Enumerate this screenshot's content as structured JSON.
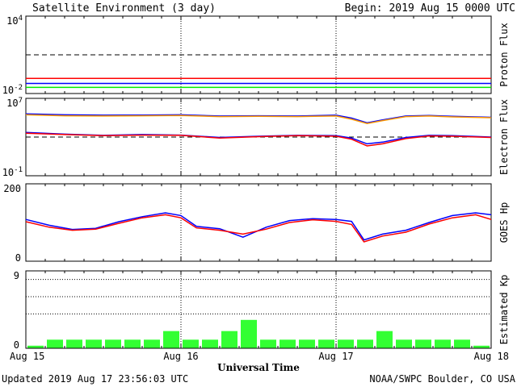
{
  "header": {
    "title": "Satellite Environment (3 day)",
    "begin": "Begin:  2019 Aug 15 0000 UTC"
  },
  "footer": {
    "updated": "Updated 2019 Aug 17 23:56:03 UTC",
    "credit": "NOAA/SWPC Boulder, CO USA"
  },
  "x_axis": {
    "label": "Universal Time",
    "ticks": [
      "Aug 15",
      "Aug 16",
      "Aug 17",
      "Aug 18"
    ]
  },
  "colors": {
    "red": "#ff0000",
    "blue": "#0000ff",
    "green": "#00ee00",
    "orange": "#ff9900",
    "kp_bar": "#33ff33",
    "axis": "#000000"
  },
  "chart_data": [
    {
      "type": "line",
      "title": "Proton Flux",
      "ylabel": "Proton Flux",
      "yscale": "log",
      "ylim": [
        0.01,
        10000
      ],
      "tick_labels": {
        "top_base": "10",
        "top_exp": "4",
        "bottom_base": "10",
        "bottom_exp": "-2"
      },
      "threshold": 10,
      "x": [
        0,
        0.25,
        0.5,
        0.75,
        1,
        1.25,
        1.5,
        1.75,
        2,
        2.25,
        2.5,
        2.75,
        3
      ],
      "series": [
        {
          "color": "red",
          "values": [
            0.15,
            0.15,
            0.15,
            0.15,
            0.15,
            0.15,
            0.15,
            0.15,
            0.15,
            0.15,
            0.15,
            0.15,
            0.15
          ]
        },
        {
          "color": "blue",
          "values": [
            0.06,
            0.06,
            0.06,
            0.06,
            0.06,
            0.06,
            0.06,
            0.06,
            0.06,
            0.06,
            0.06,
            0.06,
            0.06
          ]
        },
        {
          "color": "green",
          "values": [
            0.03,
            0.03,
            0.03,
            0.03,
            0.03,
            0.03,
            0.03,
            0.03,
            0.03,
            0.03,
            0.03,
            0.03,
            0.03
          ]
        }
      ]
    },
    {
      "type": "line",
      "title": "Electron Flux",
      "ylabel": "Electron Flux",
      "yscale": "log",
      "ylim": [
        0.1,
        10000000
      ],
      "tick_labels": {
        "top_base": "10",
        "top_exp": "7",
        "bottom_base": "10",
        "bottom_exp": "-1"
      },
      "threshold": 1000,
      "x": [
        0,
        0.25,
        0.5,
        0.75,
        1,
        1.25,
        1.5,
        1.75,
        2,
        2.1,
        2.2,
        2.3,
        2.45,
        2.6,
        2.75,
        3
      ],
      "series": [
        {
          "color": "blue",
          "values": [
            250000,
            200000,
            180000,
            190000,
            200000,
            150000,
            160000,
            150000,
            180000,
            90000,
            30000,
            60000,
            150000,
            170000,
            140000,
            110000
          ]
        },
        {
          "color": "orange",
          "values": [
            200000,
            160000,
            150000,
            160000,
            170000,
            130000,
            140000,
            130000,
            150000,
            70000,
            25000,
            50000,
            130000,
            150000,
            120000,
            100000
          ]
        },
        {
          "color": "blue",
          "values": [
            3000,
            2000,
            1500,
            1800,
            1600,
            900,
            1200,
            1500,
            1400,
            800,
            200,
            300,
            900,
            1500,
            1400,
            1000
          ]
        },
        {
          "color": "red",
          "values": [
            2500,
            1800,
            1400,
            1600,
            1500,
            800,
            1100,
            1400,
            1200,
            600,
            120,
            200,
            700,
            1300,
            1200,
            900
          ]
        }
      ]
    },
    {
      "type": "line",
      "title": "GOES Hp",
      "ylabel": "GOES Hp",
      "yscale": "linear",
      "ylim": [
        0,
        200
      ],
      "tick_labels": {
        "top": "200",
        "bottom": "0"
      },
      "x": [
        0,
        0.15,
        0.3,
        0.45,
        0.6,
        0.75,
        0.9,
        1.0,
        1.1,
        1.25,
        1.4,
        1.55,
        1.7,
        1.85,
        2.0,
        2.1,
        2.18,
        2.3,
        2.45,
        2.6,
        2.75,
        2.9,
        3.0
      ],
      "series": [
        {
          "color": "blue",
          "values": [
            108,
            93,
            82,
            85,
            102,
            115,
            125,
            118,
            90,
            84,
            62,
            88,
            105,
            110,
            108,
            103,
            55,
            70,
            80,
            100,
            118,
            125,
            120
          ]
        },
        {
          "color": "red",
          "values": [
            102,
            88,
            80,
            83,
            98,
            112,
            120,
            112,
            86,
            80,
            70,
            83,
            100,
            107,
            103,
            95,
            50,
            65,
            75,
            96,
            112,
            120,
            108
          ]
        }
      ]
    },
    {
      "type": "bar",
      "title": "Estimated Kp",
      "ylabel": "Estimated Kp",
      "ylim": [
        0,
        9
      ],
      "tick_labels": {
        "top": "9",
        "bottom": "0"
      },
      "dotted_levels": [
        4,
        6,
        8
      ],
      "values": [
        0.3,
        1,
        1,
        1,
        1,
        1,
        1,
        2,
        1,
        1,
        2,
        3.3,
        1,
        1,
        1,
        1,
        1,
        1,
        2,
        1,
        1,
        1,
        1,
        0.3
      ]
    }
  ]
}
